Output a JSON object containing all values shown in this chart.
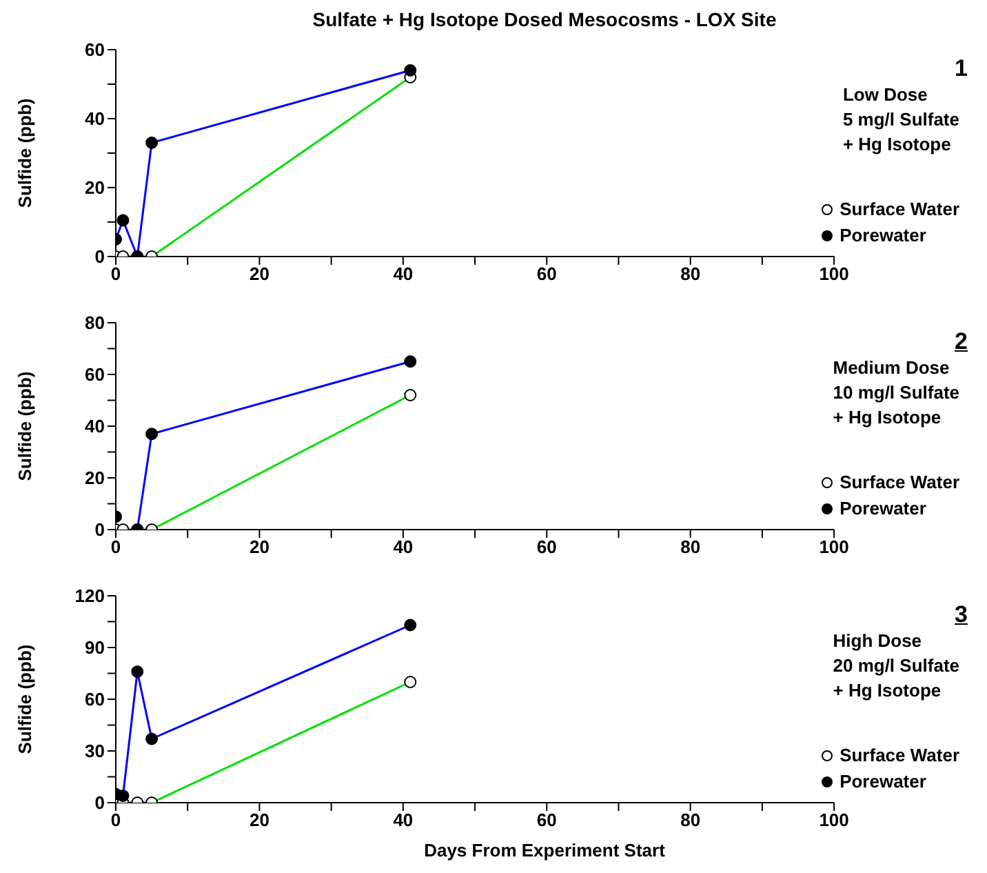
{
  "chart_data": [
    {
      "type": "line",
      "title": "Sulfate + Hg Isotope Dosed Mesocosms - LOX Site",
      "ylabel": "Sulfide (ppb)",
      "x": [
        0,
        1,
        3,
        5,
        41
      ],
      "xlim": [
        0,
        100
      ],
      "xticks": [
        0,
        {
          "value": 10,
          "label": null
        },
        20,
        {
          "value": 30,
          "label": null
        },
        40,
        {
          "value": 50,
          "label": null
        },
        60,
        {
          "value": 70,
          "label": null
        },
        80,
        {
          "value": 90,
          "label": null
        },
        100
      ],
      "ylim": [
        0,
        60
      ],
      "yticks": [
        0,
        {
          "value": 10,
          "label": null
        },
        20,
        {
          "value": 30,
          "label": null
        },
        40,
        {
          "value": 50,
          "label": null
        },
        60
      ],
      "marker": "circle",
      "line_style": "solid",
      "legend": "bottom right",
      "annotations": [
        "1",
        "Low Dose",
        "5 mg/l Sulfate",
        "+ Hg Isotope"
      ],
      "series": [
        {
          "name": "Surface Water",
          "color": "#00e000",
          "colors": [
            "#ffffff",
            "#ffffff",
            "#ffffff",
            "#ffffff",
            "#ffffff"
          ],
          "values": [
            0,
            0,
            0,
            0,
            52
          ]
        },
        {
          "name": "Porewater",
          "color": "#0000ff",
          "colors": [
            "#000000",
            "#000000",
            "#000000",
            "#000000",
            "#000000"
          ],
          "values": [
            5,
            10.5,
            0,
            33,
            54
          ]
        }
      ]
    },
    {
      "type": "line",
      "ylabel": "Sulfide (ppb)",
      "x": [
        0,
        1,
        3,
        5,
        41
      ],
      "xlim": [
        0,
        100
      ],
      "xticks": [
        0,
        {
          "value": 10,
          "label": null
        },
        20,
        {
          "value": 30,
          "label": null
        },
        40,
        {
          "value": 50,
          "label": null
        },
        60,
        {
          "value": 70,
          "label": null
        },
        80,
        {
          "value": 90,
          "label": null
        },
        100
      ],
      "ylim": [
        0,
        80
      ],
      "yticks": [
        0,
        {
          "value": 10,
          "label": null
        },
        20,
        {
          "value": 30,
          "label": null
        },
        40,
        {
          "value": 50,
          "label": null
        },
        60,
        {
          "value": 70,
          "label": null
        },
        80
      ],
      "marker": "circle",
      "line_style": "solid",
      "legend": "bottom right",
      "annotations": [
        "2",
        "Medium Dose",
        "10 mg/l Sulfate",
        "+ Hg Isotope"
      ],
      "series": [
        {
          "name": "Surface Water",
          "color": "#00e000",
          "colors": [
            "#ffffff",
            "#ffffff",
            "#ffffff",
            "#ffffff",
            "#ffffff"
          ],
          "values": [
            0,
            0,
            0,
            0,
            52
          ]
        },
        {
          "name": "Porewater",
          "color": "#0000ff",
          "colors": [
            "#000000",
            null,
            "#000000",
            "#000000",
            "#000000"
          ],
          "values": [
            5,
            null,
            0,
            37,
            65
          ]
        }
      ]
    },
    {
      "type": "line",
      "ylabel": "Sulfide (ppb)",
      "xlabel": "Days From Experiment Start",
      "x": [
        0,
        1,
        3,
        5,
        41
      ],
      "xlim": [
        0,
        100
      ],
      "xticks": [
        0,
        {
          "value": 10,
          "label": null
        },
        20,
        {
          "value": 30,
          "label": null
        },
        40,
        {
          "value": 50,
          "label": null
        },
        60,
        {
          "value": 70,
          "label": null
        },
        80,
        {
          "value": 90,
          "label": null
        },
        100
      ],
      "ylim": [
        0,
        120
      ],
      "yticks": [
        0,
        {
          "value": 15,
          "label": null
        },
        30,
        {
          "value": 45,
          "label": null
        },
        60,
        {
          "value": 75,
          "label": null
        },
        90,
        {
          "value": 105,
          "label": null
        },
        120
      ],
      "marker": "circle",
      "line_style": "solid",
      "legend": "bottom right",
      "annotations": [
        "3",
        "High Dose",
        "20 mg/l Sulfate",
        "+ Hg Isotope"
      ],
      "series": [
        {
          "name": "Surface Water",
          "color": "#00e000",
          "colors": [
            "#ffffff",
            "#ffffff",
            "#ffffff",
            "#ffffff",
            "#ffffff"
          ],
          "values": [
            0,
            0,
            0,
            0,
            70
          ]
        },
        {
          "name": "Porewater",
          "color": "#0000ff",
          "colors": [
            "#000000",
            "#000000",
            "#000000",
            "#000000",
            "#000000"
          ],
          "values": [
            5,
            4,
            76,
            37,
            103
          ]
        }
      ]
    }
  ]
}
